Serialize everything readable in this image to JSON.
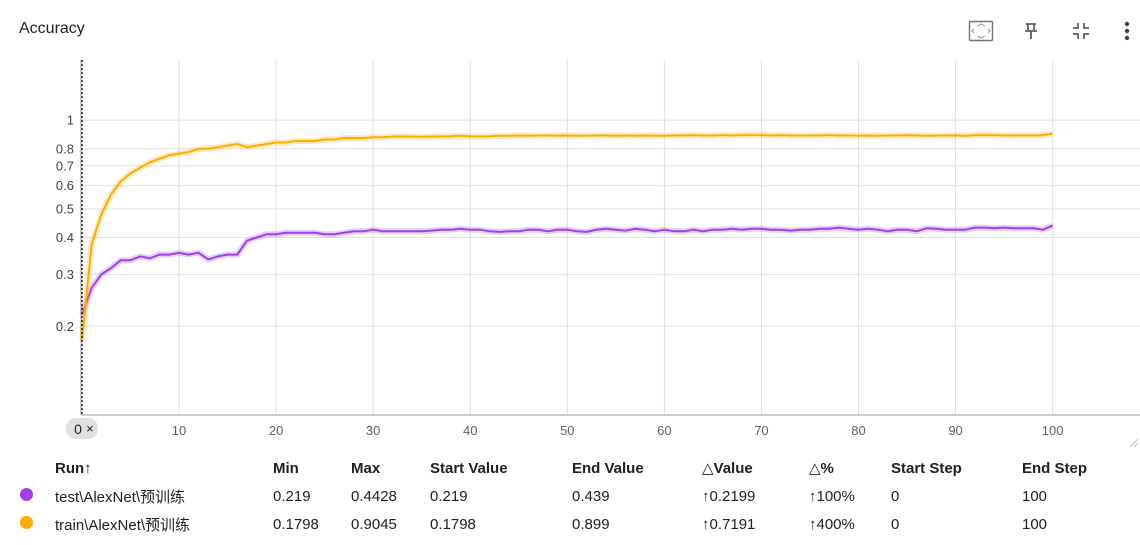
{
  "header": {
    "title": "Accuracy",
    "icons": [
      "fit-domain-icon",
      "pin-icon",
      "collapse-icon",
      "more-vert-icon"
    ]
  },
  "step_marker": {
    "label": "0",
    "close": "×"
  },
  "chart_data": {
    "type": "line",
    "title": "Accuracy",
    "xlabel": "",
    "ylabel": "",
    "x_scale": "linear",
    "y_scale": "log",
    "xlim": [
      -0.1,
      109
    ],
    "ylim": [
      0.1,
      1.6
    ],
    "x_ticks": [
      0,
      10,
      20,
      30,
      40,
      50,
      60,
      70,
      80,
      90,
      100
    ],
    "y_ticks": [
      0.2,
      0.3,
      0.4,
      0.5,
      0.6,
      0.7,
      0.8,
      1
    ],
    "grid": true,
    "series": [
      {
        "name": "test\\AlexNet\\预训练",
        "color": "#a040e8",
        "x": [
          0,
          1,
          2,
          3,
          4,
          5,
          6,
          7,
          8,
          9,
          10,
          11,
          12,
          13,
          14,
          15,
          16,
          17,
          18,
          19,
          20,
          21,
          22,
          23,
          24,
          25,
          26,
          27,
          28,
          29,
          30,
          31,
          32,
          33,
          34,
          35,
          36,
          37,
          38,
          39,
          40,
          41,
          42,
          43,
          44,
          45,
          46,
          47,
          48,
          49,
          50,
          51,
          52,
          53,
          54,
          55,
          56,
          57,
          58,
          59,
          60,
          61,
          62,
          63,
          64,
          65,
          66,
          67,
          68,
          69,
          70,
          71,
          72,
          73,
          74,
          75,
          76,
          77,
          78,
          79,
          80,
          81,
          82,
          83,
          84,
          85,
          86,
          87,
          88,
          89,
          90,
          91,
          92,
          93,
          94,
          95,
          96,
          97,
          98,
          99,
          100
        ],
        "values": [
          0.219,
          0.27,
          0.3,
          0.315,
          0.335,
          0.335,
          0.345,
          0.34,
          0.35,
          0.35,
          0.355,
          0.35,
          0.355,
          0.337,
          0.345,
          0.35,
          0.35,
          0.39,
          0.4,
          0.41,
          0.41,
          0.415,
          0.415,
          0.415,
          0.415,
          0.41,
          0.41,
          0.415,
          0.42,
          0.42,
          0.425,
          0.42,
          0.42,
          0.42,
          0.42,
          0.42,
          0.422,
          0.425,
          0.425,
          0.428,
          0.425,
          0.425,
          0.42,
          0.418,
          0.42,
          0.42,
          0.425,
          0.425,
          0.42,
          0.425,
          0.425,
          0.42,
          0.418,
          0.425,
          0.428,
          0.425,
          0.422,
          0.428,
          0.425,
          0.42,
          0.425,
          0.42,
          0.42,
          0.425,
          0.42,
          0.425,
          0.425,
          0.428,
          0.425,
          0.428,
          0.428,
          0.425,
          0.425,
          0.422,
          0.425,
          0.425,
          0.428,
          0.428,
          0.432,
          0.428,
          0.425,
          0.428,
          0.425,
          0.42,
          0.425,
          0.425,
          0.42,
          0.43,
          0.428,
          0.425,
          0.425,
          0.425,
          0.432,
          0.432,
          0.43,
          0.432,
          0.43,
          0.43,
          0.43,
          0.425,
          0.439
        ]
      },
      {
        "name": "train\\AlexNet\\预训练",
        "color": "#ffab00",
        "x": [
          0,
          1,
          2,
          3,
          4,
          5,
          6,
          7,
          8,
          9,
          10,
          11,
          12,
          13,
          14,
          15,
          16,
          17,
          18,
          19,
          20,
          21,
          22,
          23,
          24,
          25,
          26,
          27,
          28,
          29,
          30,
          31,
          32,
          33,
          34,
          35,
          36,
          37,
          38,
          39,
          40,
          41,
          42,
          43,
          44,
          45,
          46,
          47,
          48,
          49,
          50,
          51,
          52,
          53,
          54,
          55,
          56,
          57,
          58,
          59,
          60,
          61,
          62,
          63,
          64,
          65,
          66,
          67,
          68,
          69,
          70,
          71,
          72,
          73,
          74,
          75,
          76,
          77,
          78,
          79,
          80,
          81,
          82,
          83,
          84,
          85,
          86,
          87,
          88,
          89,
          90,
          91,
          92,
          93,
          94,
          95,
          96,
          97,
          98,
          99,
          100
        ],
        "values": [
          0.1798,
          0.38,
          0.48,
          0.56,
          0.62,
          0.66,
          0.69,
          0.72,
          0.74,
          0.76,
          0.77,
          0.78,
          0.8,
          0.8,
          0.81,
          0.82,
          0.83,
          0.81,
          0.82,
          0.83,
          0.84,
          0.84,
          0.85,
          0.85,
          0.85,
          0.86,
          0.86,
          0.87,
          0.87,
          0.87,
          0.875,
          0.875,
          0.88,
          0.88,
          0.88,
          0.878,
          0.88,
          0.88,
          0.882,
          0.885,
          0.882,
          0.88,
          0.882,
          0.885,
          0.885,
          0.887,
          0.885,
          0.887,
          0.887,
          0.885,
          0.887,
          0.885,
          0.885,
          0.887,
          0.887,
          0.885,
          0.887,
          0.885,
          0.887,
          0.885,
          0.885,
          0.887,
          0.887,
          0.89,
          0.887,
          0.887,
          0.89,
          0.887,
          0.89,
          0.89,
          0.89,
          0.887,
          0.89,
          0.887,
          0.887,
          0.887,
          0.887,
          0.89,
          0.887,
          0.887,
          0.885,
          0.887,
          0.885,
          0.887,
          0.887,
          0.889,
          0.887,
          0.885,
          0.887,
          0.887,
          0.887,
          0.885,
          0.89,
          0.89,
          0.89,
          0.887,
          0.887,
          0.889,
          0.887,
          0.89,
          0.899
        ]
      }
    ]
  },
  "table": {
    "columns": [
      "Run↑",
      "Min",
      "Max",
      "Start Value",
      "End Value",
      "△Value",
      "△%",
      "Start Step",
      "End Step"
    ],
    "rows": [
      {
        "color": "#a040e8",
        "cells": [
          "test\\AlexNet\\预训练",
          "0.219",
          "0.4428",
          "0.219",
          "0.439",
          "↑0.2199",
          "↑100%",
          "0",
          "100"
        ]
      },
      {
        "color": "#ffab00",
        "cells": [
          "train\\AlexNet\\预训练",
          "0.1798",
          "0.9045",
          "0.1798",
          "0.899",
          "↑0.7191",
          "↑400%",
          "0",
          "100"
        ]
      }
    ]
  }
}
